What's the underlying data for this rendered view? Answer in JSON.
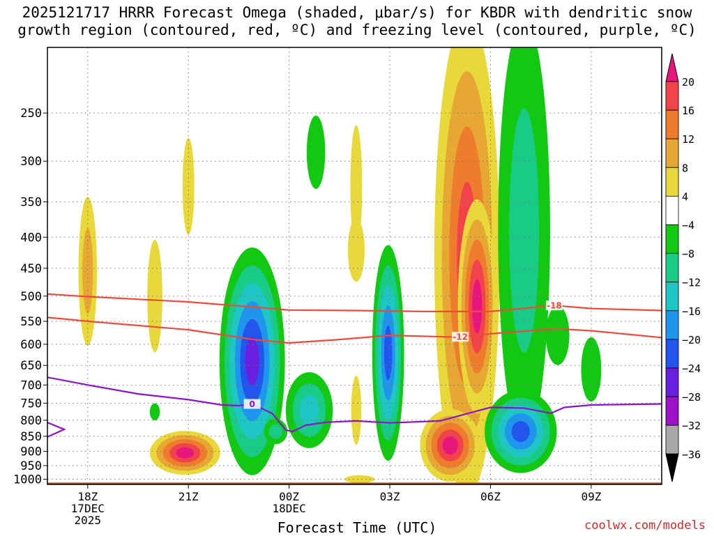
{
  "title_line1": "2025121717 HRRR Forecast Omega (shaded, μbar/s) for KBDR with dendritic snow",
  "title_line2": "growth region (contoured, red, ºC) and freezing level (contoured, purple, ºC)",
  "watermark": "coolwx.com/models",
  "chart_data": {
    "type": "heatmap",
    "title": "2025121717 HRRR Forecast Omega (shaded, μbar/s) for KBDR with dendritic snow growth region (contoured, red, ºC) and freezing level (contoured, purple, ºC)",
    "xlabel": "Forecast Time (UTC)",
    "ylabel": "",
    "x_range_hours": [
      16.8,
      35.1
    ],
    "y_range_hpa": [
      1020,
      195
    ],
    "x_ticks": [
      {
        "hour": 18,
        "lines": [
          "18Z",
          "17DEC",
          "2025"
        ]
      },
      {
        "hour": 21,
        "lines": [
          "21Z"
        ]
      },
      {
        "hour": 24,
        "lines": [
          "00Z",
          "18DEC"
        ]
      },
      {
        "hour": 27,
        "lines": [
          "03Z"
        ]
      },
      {
        "hour": 30,
        "lines": [
          "06Z"
        ]
      },
      {
        "hour": 33,
        "lines": [
          "09Z"
        ]
      }
    ],
    "y_ticks": [
      250,
      300,
      350,
      400,
      450,
      500,
      550,
      600,
      650,
      700,
      750,
      800,
      850,
      900,
      950,
      1000
    ],
    "colorbar": {
      "labels": [
        "20",
        "16",
        "12",
        "8",
        "4",
        "−4",
        "−8",
        "−12",
        "−16",
        "−20",
        "−24",
        "−28",
        "−32",
        "−36"
      ],
      "bands": [
        {
          "lo": 16,
          "hi": 20,
          "color": "#f2424a"
        },
        {
          "lo": 12,
          "hi": 16,
          "color": "#ef7c2c"
        },
        {
          "lo": 8,
          "hi": 12,
          "color": "#e6a832"
        },
        {
          "lo": 4,
          "hi": 8,
          "color": "#e8d83a"
        },
        {
          "lo": -4,
          "hi": 4,
          "color": "#ffffff"
        },
        {
          "lo": -8,
          "hi": -4,
          "color": "#12c912"
        },
        {
          "lo": -12,
          "hi": -8,
          "color": "#18cc88"
        },
        {
          "lo": -16,
          "hi": -12,
          "color": "#1ec6c6"
        },
        {
          "lo": -20,
          "hi": -16,
          "color": "#1f96ee"
        },
        {
          "lo": -24,
          "hi": -20,
          "color": "#2255ee"
        },
        {
          "lo": -28,
          "hi": -24,
          "color": "#6a1ee0"
        },
        {
          "lo": -32,
          "hi": -28,
          "color": "#9b12c8"
        },
        {
          "lo": -36,
          "hi": -32,
          "color": "#a8a8a8"
        }
      ],
      "top_arrow_color": "#e8157e",
      "bottom_arrow_color": "#000000"
    },
    "blobs": [
      {
        "x": 18.0,
        "y": 455,
        "w": 0.55,
        "h": 250,
        "levels": [
          6,
          10
        ]
      },
      {
        "x": 20.0,
        "y": 500,
        "w": 0.45,
        "h": 210,
        "levels": [
          5
        ]
      },
      {
        "x": 21.0,
        "y": 330,
        "w": 0.35,
        "h": 120,
        "levels": [
          5
        ]
      },
      {
        "x": 20.9,
        "y": 905,
        "w": 2.1,
        "h": 150,
        "levels": [
          6,
          10,
          14,
          18,
          22
        ]
      },
      {
        "x": 22.9,
        "y": 640,
        "w": 1.95,
        "h": 520,
        "levels": [
          -6,
          -10,
          -14,
          -18,
          -22,
          -26
        ]
      },
      {
        "x": 24.6,
        "y": 770,
        "w": 1.4,
        "h": 220,
        "levels": [
          -6,
          -10,
          -14
        ]
      },
      {
        "x": 23.6,
        "y": 835,
        "w": 0.7,
        "h": 80,
        "levels": [
          -6,
          -10
        ]
      },
      {
        "x": 24.8,
        "y": 290,
        "w": 0.55,
        "h": 80,
        "levels": [
          -6
        ]
      },
      {
        "x": 26.0,
        "y": 330,
        "w": 0.35,
        "h": 150,
        "levels": [
          5
        ]
      },
      {
        "x": 26.0,
        "y": 420,
        "w": 0.5,
        "h": 100,
        "levels": [
          5
        ]
      },
      {
        "x": 26.0,
        "y": 770,
        "w": 0.3,
        "h": 200,
        "levels": [
          5
        ]
      },
      {
        "x": 26.1,
        "y": 1000,
        "w": 0.9,
        "h": 30,
        "levels": [
          5
        ]
      },
      {
        "x": 26.95,
        "y": 620,
        "w": 0.95,
        "h": 480,
        "levels": [
          -6,
          -10,
          -14,
          -18,
          -22
        ]
      },
      {
        "x": 29.3,
        "y": 430,
        "w": 1.95,
        "h": 620,
        "levels": [
          6,
          10,
          14,
          18
        ]
      },
      {
        "x": 29.6,
        "y": 520,
        "w": 1.15,
        "h": 400,
        "levels": [
          6,
          10,
          14,
          18,
          22
        ]
      },
      {
        "x": 28.8,
        "y": 880,
        "w": 1.8,
        "h": 240,
        "levels": [
          6,
          10,
          14,
          18,
          22
        ]
      },
      {
        "x": 31.0,
        "y": 390,
        "w": 1.55,
        "h": 520,
        "levels": [
          -6,
          -10
        ]
      },
      {
        "x": 32.0,
        "y": 580,
        "w": 0.7,
        "h": 130,
        "levels": [
          -6
        ]
      },
      {
        "x": 30.9,
        "y": 835,
        "w": 2.15,
        "h": 260,
        "levels": [
          -6,
          -10,
          -14,
          -18,
          -22
        ]
      },
      {
        "x": 33.0,
        "y": 660,
        "w": 0.6,
        "h": 160,
        "levels": [
          -6
        ]
      },
      {
        "x": 20.0,
        "y": 775,
        "w": 0.3,
        "h": 50,
        "levels": [
          -6
        ]
      }
    ],
    "dgz_contours": [
      {
        "label": "-18",
        "label_hour": 31.9,
        "points": [
          [
            16.8,
            496
          ],
          [
            18,
            501
          ],
          [
            21,
            511
          ],
          [
            24,
            527
          ],
          [
            26,
            528
          ],
          [
            28,
            530
          ],
          [
            30,
            530
          ],
          [
            31.9,
            518
          ],
          [
            33,
            524
          ],
          [
            35.1,
            528
          ]
        ]
      },
      {
        "label": "-12",
        "label_hour": 29.1,
        "points": [
          [
            16.8,
            542
          ],
          [
            18,
            550
          ],
          [
            21,
            568
          ],
          [
            23,
            590
          ],
          [
            24,
            597
          ],
          [
            25.4,
            590
          ],
          [
            27,
            580
          ],
          [
            29,
            584
          ],
          [
            30.4,
            574
          ],
          [
            32,
            566
          ],
          [
            33,
            570
          ],
          [
            35.1,
            585
          ]
        ]
      }
    ],
    "freezing_contours": [
      {
        "label": "0",
        "label_hour": 22.9,
        "points": [
          [
            16.8,
            680
          ],
          [
            18,
            700
          ],
          [
            19.5,
            724
          ],
          [
            21,
            740
          ],
          [
            22,
            755
          ],
          [
            22.5,
            757
          ],
          [
            22.9,
            752
          ],
          [
            23.5,
            780
          ],
          [
            23.9,
            830
          ],
          [
            24.1,
            835
          ],
          [
            24.5,
            815
          ],
          [
            25.1,
            806
          ],
          [
            26,
            802
          ],
          [
            27,
            808
          ],
          [
            28.5,
            802
          ],
          [
            29.5,
            775
          ],
          [
            30,
            762
          ],
          [
            31,
            764
          ],
          [
            31.8,
            779
          ],
          [
            32.2,
            762
          ],
          [
            33,
            755
          ],
          [
            35.1,
            752
          ]
        ]
      },
      {
        "label": "",
        "label_hour": 0,
        "points": [
          [
            16.8,
            807
          ],
          [
            17.3,
            828
          ],
          [
            16.8,
            852
          ]
        ]
      }
    ],
    "legend_position": "right colorbar"
  }
}
